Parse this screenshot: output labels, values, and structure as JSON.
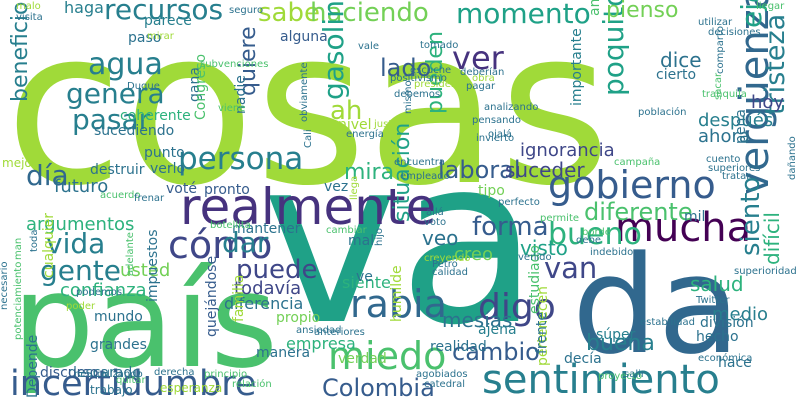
{
  "words": [
    {
      "text": "cosas",
      "color": "#a0da39"
    },
    {
      "text": "va",
      "color": "#1fa187"
    },
    {
      "text": "país",
      "color": "#4ac16d"
    },
    {
      "text": "da",
      "color": "#31688e"
    },
    {
      "text": "sentimiento",
      "color": "#277f8e"
    },
    {
      "text": "incertidumbre",
      "color": "#365c8d"
    },
    {
      "text": "realmente",
      "color": "#46327e"
    },
    {
      "text": "gobierno",
      "color": "#365c8d"
    },
    {
      "text": "mucha",
      "color": "#440154"
    },
    {
      "text": "miedo",
      "color": "#4ac16d"
    },
    {
      "text": "rabia",
      "color": "#31688e"
    },
    {
      "text": "cómo",
      "color": "#3f4788"
    },
    {
      "text": "persona",
      "color": "#277f8e"
    },
    {
      "text": "bueno",
      "color": "#2db27d"
    },
    {
      "text": "digo",
      "color": "#3f4788"
    },
    {
      "text": "vergüenza",
      "color": "#31688e"
    },
    {
      "text": "sabe",
      "color": "#a0da39"
    },
    {
      "text": "haciendo",
      "color": "#73d056"
    },
    {
      "text": "momento",
      "color": "#1fa187"
    },
    {
      "text": "recursos",
      "color": "#277f8e"
    },
    {
      "text": "gente",
      "color": "#277f8e"
    },
    {
      "text": "van",
      "color": "#3f4788"
    },
    {
      "text": "ejemplo",
      "color": "#1fa187"
    },
    {
      "text": "ver",
      "color": "#46327e"
    },
    {
      "text": "día",
      "color": "#31688e"
    },
    {
      "text": "vida",
      "color": "#277f8e"
    },
    {
      "text": "puede",
      "color": "#3f4788"
    },
    {
      "text": "dar",
      "color": "#277f8e"
    },
    {
      "text": "gasolina",
      "color": "#1fa187"
    },
    {
      "text": "poquito",
      "color": "#1fa187"
    },
    {
      "text": "tristeza",
      "color": "#277f8e"
    },
    {
      "text": "agua",
      "color": "#277f8e"
    },
    {
      "text": "genera",
      "color": "#277f8e"
    },
    {
      "text": "pasar",
      "color": "#277f8e"
    },
    {
      "text": "forma",
      "color": "#365c8d"
    },
    {
      "text": "diferente",
      "color": "#4ac16d"
    },
    {
      "text": "siento",
      "color": "#277f8e"
    },
    {
      "text": "cambio",
      "color": "#365c8d"
    },
    {
      "text": "Colombia",
      "color": "#365c8d"
    },
    {
      "text": "beneficio",
      "color": "#277f8e"
    },
    {
      "text": "lado",
      "color": "#365c8d"
    },
    {
      "text": "ah",
      "color": "#a0da39"
    },
    {
      "text": "quiere",
      "color": "#365c8d"
    },
    {
      "text": "visto",
      "color": "#1fa187"
    },
    {
      "text": "salud",
      "color": "#2db27d"
    },
    {
      "text": "laboral",
      "color": "#365c8d"
    },
    {
      "text": "mira",
      "color": "#2db27d"
    },
    {
      "text": "situación",
      "color": "#1fa187"
    },
    {
      "text": "pueden",
      "color": "#2db27d"
    },
    {
      "text": "buena",
      "color": "#277f8e"
    },
    {
      "text": "pienso",
      "color": "#73d056"
    },
    {
      "text": "dice",
      "color": "#2c728e"
    },
    {
      "text": "hoy",
      "color": "#3f4788"
    },
    {
      "text": "después",
      "color": "#277f8e"
    },
    {
      "text": "ahora",
      "color": "#2c728e"
    },
    {
      "text": "suceder",
      "color": "#3f4788"
    },
    {
      "text": "mesías",
      "color": "#2c728e"
    },
    {
      "text": "difícil",
      "color": "#2db27d"
    },
    {
      "text": "medio",
      "color": "#277f8e"
    },
    {
      "text": "argumentos",
      "color": "#2db27d"
    },
    {
      "text": "confianza",
      "color": "#2db27d"
    },
    {
      "text": "todavía",
      "color": "#3f4788"
    },
    {
      "text": "futuro",
      "color": "#2c728e"
    },
    {
      "text": "usted",
      "color": "#73d056"
    },
    {
      "text": "veo",
      "color": "#2c728e"
    },
    {
      "text": "creo",
      "color": "#73d056"
    },
    {
      "text": "ignorancia",
      "color": "#3f4788"
    },
    {
      "text": "diferencia",
      "color": "#2c728e"
    },
    {
      "text": "empresa",
      "color": "#2db27d"
    },
    {
      "text": "siente",
      "color": "#2db27d"
    },
    {
      "text": "haga",
      "color": "#277f8e"
    },
    {
      "text": "parece",
      "color": "#277f8e"
    },
    {
      "text": "sucediendo",
      "color": "#2c728e"
    },
    {
      "text": "importante",
      "color": "#277f8e"
    },
    {
      "text": "hecho",
      "color": "#2c728e"
    },
    {
      "text": "estudiado",
      "color": "#4ac16d"
    },
    {
      "text": "realidad",
      "color": "#2c728e"
    },
    {
      "text": "impuestos",
      "color": "#2c728e"
    },
    {
      "text": "familia",
      "color": "#a0da39"
    },
    {
      "text": "mundo",
      "color": "#2c728e"
    },
    {
      "text": "división",
      "color": "#2c728e"
    },
    {
      "text": "coherente",
      "color": "#2db27d"
    },
    {
      "text": "paso",
      "color": "#2c728e"
    },
    {
      "text": "gana",
      "color": "#2c728e"
    },
    {
      "text": "mantener",
      "color": "#2c728e"
    },
    {
      "text": "decía",
      "color": "#2c728e"
    },
    {
      "text": "tipo",
      "color": "#73d056"
    },
    {
      "text": "voté",
      "color": "#365c8d"
    },
    {
      "text": "pronto",
      "color": "#365c8d"
    },
    {
      "text": "destruir",
      "color": "#2c728e"
    },
    {
      "text": "nivel",
      "color": "#a0da39"
    },
    {
      "text": "cierto",
      "color": "#2c728e"
    },
    {
      "text": "alguna",
      "color": "#365c8d"
    },
    {
      "text": "angustia",
      "color": "#4ac16d"
    },
    {
      "text": "ajena",
      "color": "#277f8e"
    },
    {
      "text": "vez",
      "color": "#2c728e"
    },
    {
      "text": "mil",
      "color": "#2c728e"
    },
    {
      "text": "súper",
      "color": "#277f8e"
    },
    {
      "text": "pena",
      "color": "#2c728e"
    },
    {
      "text": "manera",
      "color": "#2c728e"
    },
    {
      "text": "propio",
      "color": "#73d056"
    },
    {
      "text": "quejándose",
      "color": "#365c8d"
    },
    {
      "text": "humilde",
      "color": "#a0da39"
    },
    {
      "text": "pertenecen",
      "color": "#a0da39"
    },
    {
      "text": "hace",
      "color": "#2c728e"
    },
    {
      "text": "descarado",
      "color": "#2c728e"
    },
    {
      "text": "discurso",
      "color": "#365c8d"
    },
    {
      "text": "punto",
      "color": "#2c728e"
    },
    {
      "text": "verlo",
      "color": "#2c728e"
    },
    {
      "text": "ve",
      "color": "#2c728e"
    },
    {
      "text": "mal",
      "color": "#2c728e"
    },
    {
      "text": "nadie",
      "color": "#2c728e"
    },
    {
      "text": "Congreso",
      "color": "#4ac16d"
    },
    {
      "text": "grandes",
      "color": "#2c728e"
    },
    {
      "text": "cualquier",
      "color": "#a0da39"
    },
    {
      "text": "frente",
      "color": "#2c728e"
    },
    {
      "text": "verdad",
      "color": "#73d056"
    },
    {
      "text": "Depende",
      "color": "#2c728e"
    },
    {
      "text": "mejor",
      "color": "#a0da39"
    },
    {
      "text": "trabajo",
      "color": "#2c728e"
    },
    {
      "text": "esperanza",
      "color": "#a0da39"
    },
    {
      "text": "malo",
      "color": "#a0da39"
    },
    {
      "text": "visita",
      "color": "#2c728e"
    },
    {
      "text": "seguro",
      "color": "#2c728e"
    },
    {
      "text": "llegar",
      "color": "#4ac16d"
    },
    {
      "text": "utilizar",
      "color": "#2c728e"
    },
    {
      "text": "decisiones",
      "color": "#2c728e"
    },
    {
      "text": "mirar",
      "color": "#a0da39"
    },
    {
      "text": "Duque",
      "color": "#2c728e"
    },
    {
      "text": "subvenciones",
      "color": "#4ac16d"
    },
    {
      "text": "vale",
      "color": "#2c728e"
    },
    {
      "text": "tomado",
      "color": "#2c728e"
    },
    {
      "text": "positivismo",
      "color": "#2c728e"
    },
    {
      "text": "escuche",
      "color": "#2c728e"
    },
    {
      "text": "deberían",
      "color": "#2c728e"
    },
    {
      "text": "obra",
      "color": "#a0da39"
    },
    {
      "text": "pagar",
      "color": "#2c728e"
    },
    {
      "text": "comparto",
      "color": "#2c728e"
    },
    {
      "text": "tranquila",
      "color": "#4ac16d"
    },
    {
      "text": "sacar",
      "color": "#4ac16d"
    },
    {
      "text": "población",
      "color": "#2c728e"
    },
    {
      "text": "obviamente",
      "color": "#2c728e"
    },
    {
      "text": "presidente",
      "color": "#a0da39"
    },
    {
      "text": "debemos",
      "color": "#2c728e"
    },
    {
      "text": "viene",
      "color": "#4ac16d"
    },
    {
      "text": "justo",
      "color": "#a0da39"
    },
    {
      "text": "energía",
      "color": "#2c728e"
    },
    {
      "text": "analizando",
      "color": "#2c728e"
    },
    {
      "text": "pensando",
      "color": "#2c728e"
    },
    {
      "text": "ojalá",
      "color": "#2c728e"
    },
    {
      "text": "invierto",
      "color": "#2c728e"
    },
    {
      "text": "cuento",
      "color": "#2c728e"
    },
    {
      "text": "superiores",
      "color": "#2c728e"
    },
    {
      "text": "tratar",
      "color": "#2c728e"
    },
    {
      "text": "dañando",
      "color": "#2c728e"
    },
    {
      "text": "encuentra",
      "color": "#2c728e"
    },
    {
      "text": "campaña",
      "color": "#4ac16d"
    },
    {
      "text": "Cali",
      "color": "#2c728e"
    },
    {
      "text": "empleado",
      "color": "#2c728e"
    },
    {
      "text": "acuerdo",
      "color": "#4ac16d"
    },
    {
      "text": "frenar",
      "color": "#2c728e"
    },
    {
      "text": "botellita",
      "color": "#4ac16d"
    },
    {
      "text": "llega",
      "color": "#a0da39"
    },
    {
      "text": "allá",
      "color": "#2c728e"
    },
    {
      "text": "voto",
      "color": "#2c728e"
    },
    {
      "text": "perfecto",
      "color": "#2c728e"
    },
    {
      "text": "permite",
      "color": "#4ac16d"
    },
    {
      "text": "borde",
      "color": "#4ac16d"
    },
    {
      "text": "debe",
      "color": "#2c728e"
    },
    {
      "text": "indebido",
      "color": "#2c728e"
    },
    {
      "text": "venido",
      "color": "#2c728e"
    },
    {
      "text": "superioridad",
      "color": "#2c728e"
    },
    {
      "text": "Twitter",
      "color": "#2c728e"
    },
    {
      "text": "cambiar",
      "color": "#4ac16d"
    },
    {
      "text": "hijo",
      "color": "#2c728e"
    },
    {
      "text": "creyendo",
      "color": "#a0da39"
    },
    {
      "text": "Petro",
      "color": "#2c728e"
    },
    {
      "text": "calidad",
      "color": "#2c728e"
    },
    {
      "text": "toda",
      "color": "#2c728e"
    },
    {
      "text": "podemos",
      "color": "#2c728e"
    },
    {
      "text": "adelante",
      "color": "#4ac16d"
    },
    {
      "text": "poder",
      "color": "#a0da39"
    },
    {
      "text": "man",
      "color": "#4ac16d"
    },
    {
      "text": "potenciamiento",
      "color": "#4ac16d"
    },
    {
      "text": "necesario",
      "color": "#2c728e"
    },
    {
      "text": "neutralizando",
      "color": "#2c728e"
    },
    {
      "text": "quitar",
      "color": "#4ac16d"
    },
    {
      "text": "derecha",
      "color": "#2c728e"
    },
    {
      "text": "principio",
      "color": "#4ac16d"
    },
    {
      "text": "relación",
      "color": "#4ac16d"
    },
    {
      "text": "ansiedad",
      "color": "#2c728e"
    },
    {
      "text": "anteriores",
      "color": "#2c728e"
    },
    {
      "text": "agobiados",
      "color": "#2c728e"
    },
    {
      "text": "catedral",
      "color": "#2c728e"
    },
    {
      "text": "proyecto",
      "color": "#4ac16d"
    },
    {
      "text": "salir",
      "color": "#2c728e"
    },
    {
      "text": "económica",
      "color": "#2c728e"
    },
    {
      "text": "estabilidad",
      "color": "#2c728e"
    },
    {
      "text": "mismo",
      "color": "#2c728e"
    },
    {
      "text": "parte",
      "color": "#2c728e"
    }
  ]
}
